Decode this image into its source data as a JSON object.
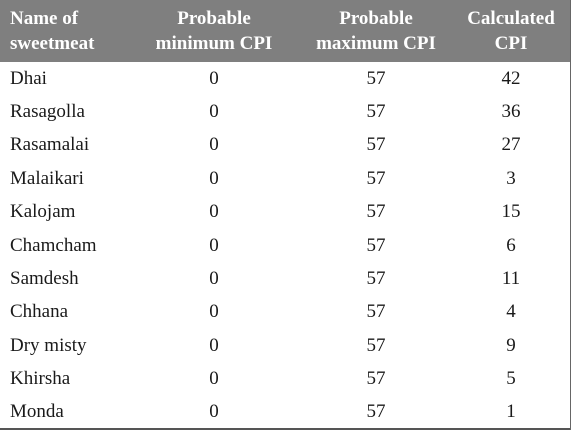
{
  "table": {
    "headers": [
      [
        "Name of",
        "sweetmeat"
      ],
      [
        "Probable",
        "minimum CPI"
      ],
      [
        "Probable",
        "maximum CPI"
      ],
      [
        "Calculated",
        "CPI"
      ]
    ],
    "rows": [
      [
        "Dhai",
        "0",
        "57",
        "42"
      ],
      [
        "Rasagolla",
        "0",
        "57",
        "36"
      ],
      [
        "Rasamalai",
        "0",
        "57",
        "27"
      ],
      [
        "Malaikari",
        "0",
        "57",
        "3"
      ],
      [
        "Kalojam",
        "0",
        "57",
        "15"
      ],
      [
        "Chamcham",
        "0",
        "57",
        "6"
      ],
      [
        "Samdesh",
        "0",
        "57",
        "11"
      ],
      [
        "Chhana",
        "0",
        "57",
        "4"
      ],
      [
        "Dry misty",
        "0",
        "57",
        "9"
      ],
      [
        "Khirsha",
        "0",
        "57",
        "5"
      ],
      [
        "Monda",
        "0",
        "57",
        "1"
      ]
    ]
  }
}
